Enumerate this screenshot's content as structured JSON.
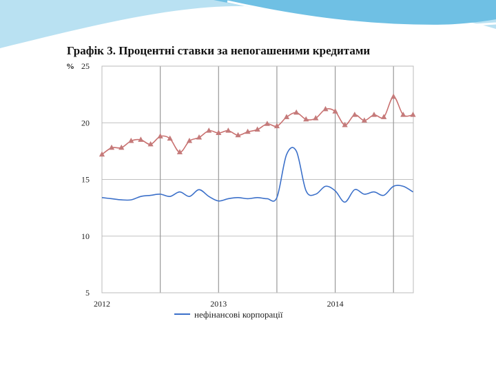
{
  "slide": {
    "title": "Графік 3. Процентні ставки за непогашеними кредитами"
  },
  "colors": {
    "nonfinancial": "#3a6fc9",
    "other_series": "#c9706f",
    "marker": "#c47a7a",
    "grid": "#c0c0c0",
    "vgrid": "#999999",
    "wave_light": "#b9e1f2",
    "wave_dark": "#6fc0e4"
  },
  "chart_data": {
    "type": "line",
    "y_unit_label": "%",
    "ylim": [
      5,
      25
    ],
    "yticks": [
      5,
      10,
      15,
      20,
      25
    ],
    "xlim": [
      2012.0,
      2014.67
    ],
    "xticks": [
      2012,
      2013,
      2014
    ],
    "xtick_labels": [
      "2012",
      "2013",
      "2014"
    ],
    "grid": true,
    "legend_position": "bottom",
    "series": [
      {
        "name": "нефінансові корпорації",
        "key": "nonfinancial",
        "marker": "none",
        "x": [
          2012.0,
          2012.083,
          2012.167,
          2012.25,
          2012.333,
          2012.417,
          2012.5,
          2012.583,
          2012.667,
          2012.75,
          2012.833,
          2012.917,
          2013.0,
          2013.083,
          2013.167,
          2013.25,
          2013.333,
          2013.417,
          2013.5,
          2013.583,
          2013.667,
          2013.75,
          2013.833,
          2013.917,
          2014.0,
          2014.083,
          2014.167,
          2014.25,
          2014.333,
          2014.417,
          2014.5,
          2014.583,
          2014.667
        ],
        "values": [
          13.4,
          13.3,
          13.2,
          13.2,
          13.5,
          13.6,
          13.7,
          13.5,
          13.9,
          13.5,
          14.1,
          13.5,
          13.1,
          13.3,
          13.4,
          13.3,
          13.4,
          13.3,
          13.4,
          17.2,
          17.5,
          14.0,
          13.7,
          14.4,
          14.0,
          13.0,
          14.1,
          13.7,
          13.9,
          13.6,
          14.4,
          14.4,
          13.9
        ]
      },
      {
        "key": "other",
        "marker": "triangle",
        "x": [
          2012.0,
          2012.083,
          2012.167,
          2012.25,
          2012.333,
          2012.417,
          2012.5,
          2012.583,
          2012.667,
          2012.75,
          2012.833,
          2012.917,
          2013.0,
          2013.083,
          2013.167,
          2013.25,
          2013.333,
          2013.417,
          2013.5,
          2013.583,
          2013.667,
          2013.75,
          2013.833,
          2013.917,
          2014.0,
          2014.083,
          2014.167,
          2014.25,
          2014.333,
          2014.417,
          2014.5,
          2014.583,
          2014.667
        ],
        "values": [
          17.2,
          17.8,
          17.8,
          18.4,
          18.5,
          18.1,
          18.8,
          18.6,
          17.4,
          18.4,
          18.7,
          19.3,
          19.1,
          19.3,
          18.9,
          19.2,
          19.4,
          19.9,
          19.7,
          20.5,
          20.9,
          20.3,
          20.4,
          21.2,
          21.0,
          19.8,
          20.7,
          20.2,
          20.7,
          20.5,
          22.3,
          20.7,
          20.7
        ]
      }
    ]
  }
}
